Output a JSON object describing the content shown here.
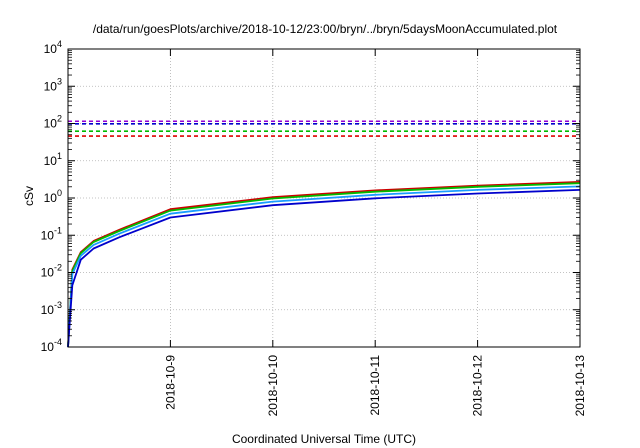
{
  "chart_data": {
    "type": "line",
    "title": "/data/run/goesPlots/archive/2018-10-12/23:00/bryn/../bryn/5daysMoonAccumulated.plot",
    "xlabel": "Coordinated Universal Time (UTC)",
    "ylabel": "cSv",
    "y_scale": "log",
    "ylim_exponents": [
      -4,
      4
    ],
    "y_ticks": [
      {
        "base": "10",
        "exp": "-4"
      },
      {
        "base": "10",
        "exp": "-3"
      },
      {
        "base": "10",
        "exp": "-2"
      },
      {
        "base": "10",
        "exp": "-1"
      },
      {
        "base": "10",
        "exp": "0"
      },
      {
        "base": "10",
        "exp": "1"
      },
      {
        "base": "10",
        "exp": "2"
      },
      {
        "base": "10",
        "exp": "3"
      },
      {
        "base": "10",
        "exp": "4"
      }
    ],
    "xlim": [
      "2018-10-08T00:00",
      "2018-10-13T00:00"
    ],
    "x_ticks": [
      "2018-10-9",
      "2018-10-10",
      "2018-10-11",
      "2018-10-12",
      "2018-10-13"
    ],
    "grid": true,
    "x_sample_dates": [
      "2018-10-08 01:00",
      "2018-10-08 03:00",
      "2018-10-08 06:00",
      "2018-10-08 12:00",
      "2018-10-09 00:00",
      "2018-10-10 00:00",
      "2018-10-11 00:00",
      "2018-10-12 00:00",
      "2018-10-13 00:00"
    ],
    "series": [
      {
        "color": "#cc0000",
        "style": "solid",
        "values": [
          0.012,
          0.035,
          0.07,
          0.14,
          0.5,
          1.05,
          1.6,
          2.15,
          2.7
        ]
      },
      {
        "color": "#00bb00",
        "style": "solid",
        "values": [
          0.011,
          0.033,
          0.066,
          0.13,
          0.46,
          0.97,
          1.48,
          2.0,
          2.5
        ]
      },
      {
        "color": "#1a9cff",
        "style": "solid",
        "values": [
          0.009,
          0.028,
          0.055,
          0.11,
          0.38,
          0.8,
          1.22,
          1.65,
          2.05
        ]
      },
      {
        "color": "#0000cc",
        "style": "solid",
        "values": [
          0.0045,
          0.022,
          0.044,
          0.088,
          0.3,
          0.64,
          0.98,
          1.32,
          1.65
        ]
      }
    ],
    "reference_lines": [
      {
        "color": "#9400d3",
        "style": "dashed",
        "value": 115
      },
      {
        "color": "#0000cc",
        "style": "dashed",
        "value": 98
      },
      {
        "color": "#00bb00",
        "style": "dashed",
        "value": 62
      },
      {
        "color": "#dd0000",
        "style": "dashed",
        "value": 46
      }
    ]
  }
}
